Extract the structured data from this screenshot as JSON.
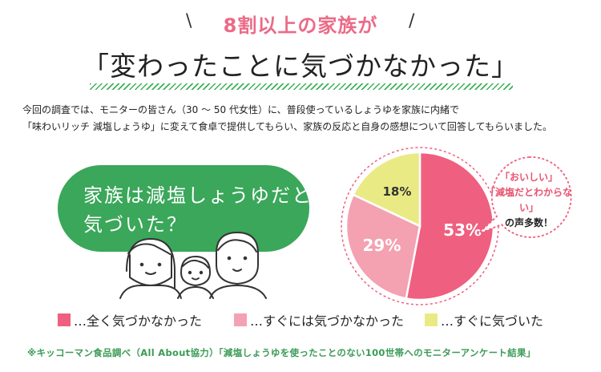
{
  "header": {
    "headline": "8割以上の家族が",
    "slash_left": "\\",
    "slash_right": "/",
    "title": "「変わったことに気づかなかった」"
  },
  "intro": {
    "line1": "今回の調査では、モニターの皆さん（30 〜 50 代女性）に、普段使っているしょうゆを家族に内緒で",
    "line2": "「味わいリッチ 減塩しょうゆ」に変えて食卓で提供してもらい、家族の反応と自身の感想について回答してもらいました。"
  },
  "question": {
    "line1": "家族は減塩しょうゆだと",
    "line2": "気づいた？"
  },
  "callout": {
    "line1": "「おいしい」",
    "line2": "「減塩だとわからない」",
    "line3": "の声多数！"
  },
  "chart_data": {
    "type": "pie",
    "slices": [
      {
        "label": "…全く気づかなかった",
        "value": 53,
        "display": "53%",
        "color": "#ef5f7f"
      },
      {
        "label": "…すぐには気づかなかった",
        "value": 29,
        "display": "29%",
        "color": "#f4a1b1"
      },
      {
        "label": "…すぐに気づいた",
        "value": 18,
        "display": "18%",
        "color": "#eaea84"
      }
    ],
    "start": "top",
    "direction": "clockwise",
    "legend_position": "bottom"
  },
  "footer": {
    "note": "※キッコーマン食品調べ（All About協力）「減塩しょうゆを使ったことのない100世帯へのモニターアンケート結果」"
  }
}
